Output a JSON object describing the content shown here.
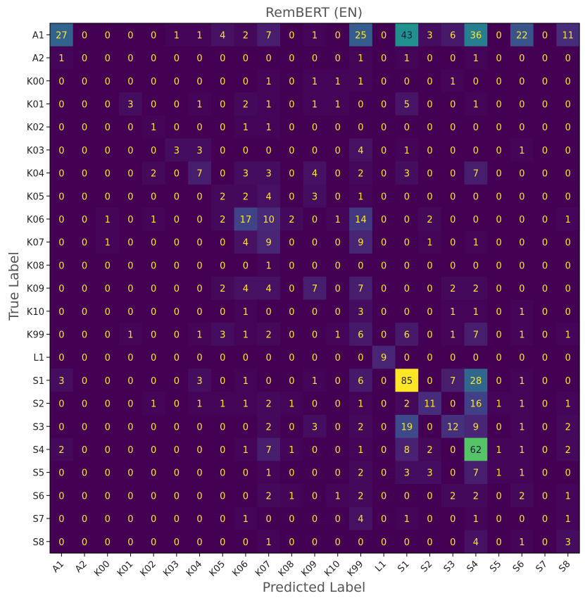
{
  "chart_data": {
    "type": "heatmap",
    "title": "RemBERT (EN)",
    "xlabel": "Predicted Label",
    "ylabel": "True Label",
    "colormap": "viridis",
    "value_range": [
      0,
      85
    ],
    "x_categories": [
      "A1",
      "A2",
      "K00",
      "K01",
      "K02",
      "K03",
      "K04",
      "K05",
      "K06",
      "K07",
      "K08",
      "K09",
      "K10",
      "K99",
      "L1",
      "S1",
      "S2",
      "S3",
      "S4",
      "S5",
      "S6",
      "S7",
      "S8"
    ],
    "y_categories": [
      "A1",
      "A2",
      "K00",
      "K01",
      "K02",
      "K03",
      "K04",
      "K05",
      "K06",
      "K07",
      "K08",
      "K09",
      "K10",
      "K99",
      "L1",
      "S1",
      "S2",
      "S3",
      "S4",
      "S5",
      "S6",
      "S7",
      "S8"
    ],
    "values": [
      [
        27,
        0,
        0,
        0,
        0,
        1,
        1,
        4,
        2,
        7,
        0,
        1,
        0,
        25,
        0,
        43,
        3,
        6,
        36,
        0,
        22,
        0,
        11
      ],
      [
        1,
        0,
        0,
        0,
        0,
        0,
        0,
        0,
        0,
        0,
        0,
        0,
        0,
        1,
        0,
        1,
        0,
        0,
        1,
        0,
        0,
        0,
        0
      ],
      [
        0,
        0,
        0,
        0,
        0,
        0,
        0,
        0,
        0,
        1,
        0,
        1,
        1,
        1,
        0,
        0,
        0,
        1,
        0,
        0,
        0,
        0,
        0
      ],
      [
        0,
        0,
        0,
        3,
        0,
        0,
        1,
        0,
        2,
        1,
        0,
        1,
        1,
        0,
        0,
        5,
        0,
        0,
        1,
        0,
        0,
        0,
        0
      ],
      [
        0,
        0,
        0,
        0,
        1,
        0,
        0,
        0,
        1,
        1,
        0,
        0,
        0,
        0,
        0,
        0,
        0,
        0,
        0,
        0,
        0,
        0,
        0
      ],
      [
        0,
        0,
        0,
        0,
        0,
        3,
        3,
        0,
        0,
        0,
        0,
        0,
        0,
        4,
        0,
        1,
        0,
        0,
        0,
        0,
        1,
        0,
        0
      ],
      [
        0,
        0,
        0,
        0,
        2,
        0,
        7,
        0,
        3,
        3,
        0,
        4,
        0,
        2,
        0,
        3,
        0,
        0,
        7,
        0,
        0,
        0,
        0
      ],
      [
        0,
        0,
        0,
        0,
        0,
        0,
        0,
        2,
        2,
        4,
        0,
        3,
        0,
        1,
        0,
        0,
        0,
        0,
        0,
        0,
        0,
        0,
        0
      ],
      [
        0,
        0,
        1,
        0,
        1,
        0,
        0,
        2,
        17,
        10,
        2,
        0,
        1,
        14,
        0,
        0,
        2,
        0,
        0,
        0,
        0,
        0,
        1
      ],
      [
        0,
        0,
        1,
        0,
        0,
        0,
        0,
        0,
        4,
        9,
        0,
        0,
        0,
        9,
        0,
        0,
        1,
        0,
        1,
        0,
        0,
        0,
        0
      ],
      [
        0,
        0,
        0,
        0,
        0,
        0,
        0,
        0,
        0,
        1,
        0,
        0,
        0,
        0,
        0,
        0,
        0,
        0,
        0,
        0,
        0,
        0,
        0
      ],
      [
        0,
        0,
        0,
        0,
        0,
        0,
        0,
        2,
        4,
        4,
        0,
        7,
        0,
        7,
        0,
        0,
        0,
        2,
        2,
        0,
        0,
        0,
        0
      ],
      [
        0,
        0,
        0,
        0,
        0,
        0,
        0,
        0,
        1,
        0,
        0,
        0,
        0,
        3,
        0,
        0,
        0,
        1,
        1,
        0,
        1,
        0,
        0
      ],
      [
        0,
        0,
        0,
        1,
        0,
        0,
        1,
        3,
        1,
        2,
        0,
        0,
        1,
        6,
        0,
        6,
        0,
        1,
        7,
        0,
        1,
        0,
        1
      ],
      [
        0,
        0,
        0,
        0,
        0,
        0,
        0,
        0,
        0,
        0,
        0,
        0,
        0,
        0,
        9,
        0,
        0,
        0,
        0,
        0,
        0,
        0,
        0
      ],
      [
        3,
        0,
        0,
        0,
        0,
        0,
        3,
        0,
        1,
        0,
        0,
        1,
        0,
        6,
        0,
        85,
        0,
        7,
        28,
        0,
        1,
        0,
        0
      ],
      [
        0,
        0,
        0,
        0,
        1,
        0,
        1,
        1,
        1,
        2,
        1,
        0,
        0,
        1,
        0,
        2,
        11,
        0,
        16,
        1,
        1,
        0,
        1
      ],
      [
        0,
        0,
        0,
        0,
        0,
        0,
        0,
        0,
        0,
        2,
        0,
        3,
        0,
        2,
        0,
        19,
        0,
        12,
        9,
        0,
        1,
        0,
        2
      ],
      [
        2,
        0,
        0,
        0,
        0,
        0,
        0,
        0,
        1,
        7,
        1,
        0,
        0,
        1,
        0,
        8,
        2,
        0,
        62,
        1,
        1,
        0,
        2
      ],
      [
        0,
        0,
        0,
        0,
        0,
        0,
        0,
        0,
        0,
        1,
        0,
        0,
        0,
        2,
        0,
        3,
        3,
        0,
        7,
        1,
        1,
        0,
        0
      ],
      [
        0,
        0,
        0,
        0,
        0,
        0,
        0,
        0,
        0,
        2,
        1,
        0,
        1,
        2,
        0,
        0,
        0,
        2,
        2,
        0,
        2,
        0,
        1
      ],
      [
        0,
        0,
        0,
        0,
        0,
        0,
        0,
        0,
        1,
        0,
        0,
        0,
        0,
        4,
        0,
        1,
        0,
        0,
        1,
        0,
        0,
        0,
        1
      ],
      [
        0,
        0,
        0,
        0,
        0,
        0,
        0,
        0,
        0,
        1,
        0,
        0,
        0,
        0,
        0,
        0,
        0,
        0,
        4,
        0,
        1,
        0,
        3
      ]
    ]
  }
}
